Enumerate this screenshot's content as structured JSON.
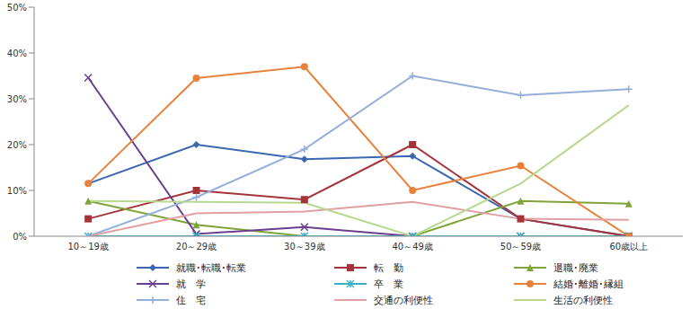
{
  "chart_data": {
    "type": "line",
    "categories": [
      "10～19歳",
      "20～29歳",
      "30～39歳",
      "40～49歳",
      "50～59歳",
      "60歳以上"
    ],
    "ylim": [
      0,
      50
    ],
    "yticks": [
      {
        "value": 0,
        "label": "0%"
      },
      {
        "value": 10,
        "label": "10%"
      },
      {
        "value": 20,
        "label": "20%"
      },
      {
        "value": 30,
        "label": "30%"
      },
      {
        "value": 40,
        "label": "40%"
      },
      {
        "value": 50,
        "label": "50%"
      }
    ],
    "grid": false,
    "legend": "bottom",
    "series": [
      {
        "name": "就職･転職･転業",
        "color": "#3A67B0",
        "marker": "diamond",
        "values": [
          11.5,
          20,
          16.8,
          17.5,
          3.8,
          0
        ]
      },
      {
        "name": "転　勤",
        "color": "#A5343A",
        "marker": "square",
        "values": [
          3.8,
          10,
          8,
          20,
          3.8,
          0
        ]
      },
      {
        "name": "退職･廃業",
        "color": "#7FA43A",
        "marker": "triangle",
        "values": [
          7.7,
          2.5,
          0,
          0,
          7.7,
          7.1
        ]
      },
      {
        "name": "就　学",
        "color": "#6B3F8F",
        "marker": "x",
        "values": [
          34.6,
          0.5,
          2,
          0,
          0,
          0
        ]
      },
      {
        "name": "卒　業",
        "color": "#3AAFC6",
        "marker": "star",
        "values": [
          0,
          0,
          0,
          0,
          0,
          0
        ]
      },
      {
        "name": "結婚･離婚･縁組",
        "color": "#E8823A",
        "marker": "circle",
        "values": [
          11.5,
          34.5,
          37,
          10,
          15.4,
          0
        ]
      },
      {
        "name": "住　宅",
        "color": "#93AEDB",
        "marker": "plus",
        "values": [
          0,
          8.5,
          19,
          35,
          30.8,
          32.1
        ]
      },
      {
        "name": "交通の利便性",
        "color": "#E0A0A0",
        "marker": "none",
        "values": [
          0,
          5,
          5.4,
          7.5,
          3.8,
          3.6
        ]
      },
      {
        "name": "生活の利便性",
        "color": "#B7D98F",
        "marker": "none",
        "values": [
          7.7,
          7.5,
          7.3,
          0,
          11.5,
          28.6
        ]
      }
    ]
  }
}
